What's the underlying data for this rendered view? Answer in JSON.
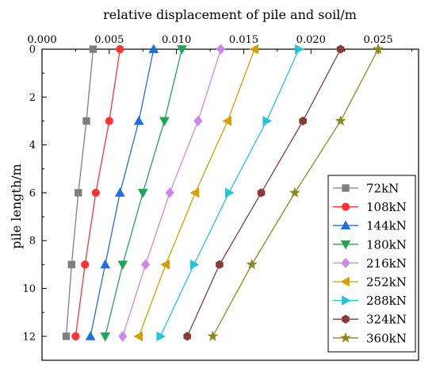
{
  "chart_data": {
    "type": "line",
    "orientation": "x-top, y-inverted",
    "xlabel": "relative displacement of pile and soil/m",
    "ylabel": "pile length/m",
    "xlim": [
      0,
      0.028
    ],
    "ylim": [
      13,
      0
    ],
    "x_ticks": [
      "0.000",
      "0.005",
      "0.010",
      "0.015",
      "0.020",
      "0.025"
    ],
    "y_ticks": [
      "0",
      "2",
      "4",
      "6",
      "8",
      "10",
      "12"
    ],
    "legend_position": "bottom-right",
    "depth": [
      0,
      3,
      6,
      9,
      12
    ],
    "series": [
      {
        "name": "72kN",
        "color": "#7f7f7f",
        "marker": "square",
        "values": [
          0.0038,
          0.0033,
          0.0027,
          0.0022,
          0.0018
        ]
      },
      {
        "name": "108kN",
        "color": "#ff3333",
        "marker": "circle",
        "values": [
          0.0058,
          0.005,
          0.004,
          0.0032,
          0.0025
        ]
      },
      {
        "name": "144kN",
        "color": "#1f6fe0",
        "marker": "triangle-up",
        "values": [
          0.0083,
          0.0072,
          0.0058,
          0.0047,
          0.0036
        ]
      },
      {
        "name": "180kN",
        "color": "#1ea657",
        "marker": "triangle-down",
        "values": [
          0.0104,
          0.0091,
          0.0075,
          0.006,
          0.0047
        ]
      },
      {
        "name": "216kN",
        "color": "#cc88ee",
        "marker": "diamond",
        "values": [
          0.0133,
          0.0116,
          0.0095,
          0.0077,
          0.006
        ]
      },
      {
        "name": "252kN",
        "color": "#d4a000",
        "marker": "triangle-left",
        "values": [
          0.0158,
          0.0138,
          0.0114,
          0.0092,
          0.0072
        ]
      },
      {
        "name": "288kN",
        "color": "#22c5d6",
        "marker": "triangle-right",
        "values": [
          0.0191,
          0.0167,
          0.0139,
          0.0113,
          0.0088
        ]
      },
      {
        "name": "324kN",
        "color": "#8b3a3a",
        "marker": "hexagon",
        "values": [
          0.0222,
          0.0194,
          0.0163,
          0.0132,
          0.0108
        ]
      },
      {
        "name": "360kN",
        "color": "#8b8b1a",
        "marker": "star",
        "values": [
          0.025,
          0.0222,
          0.0188,
          0.0156,
          0.0127
        ]
      }
    ]
  }
}
